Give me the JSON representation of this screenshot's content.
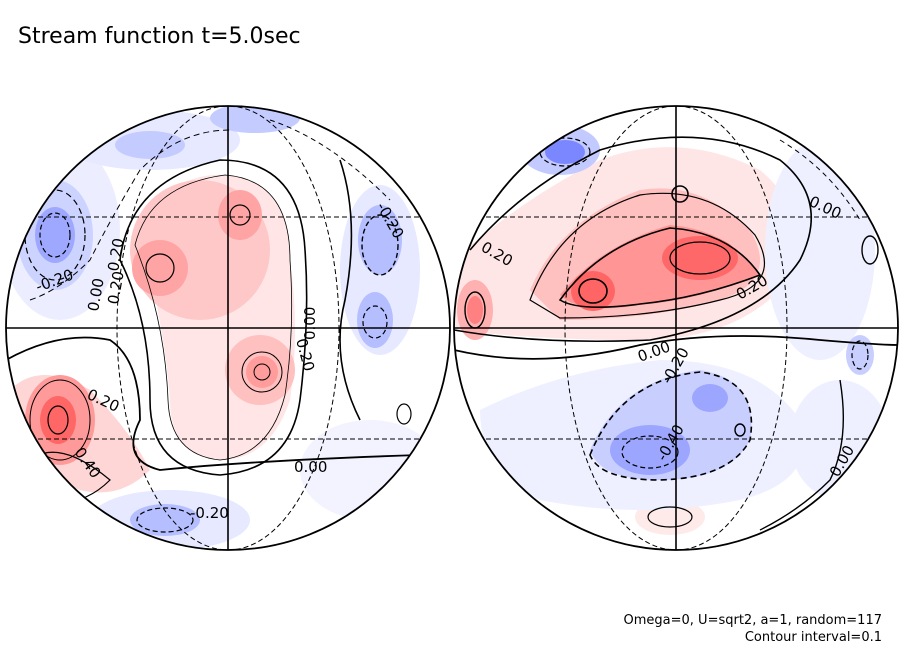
{
  "title": "Stream function t=5.0sec",
  "footer": {
    "params": "Omega=0, U=sqrt2, a=1, random=117",
    "contour_interval": "Contour interval=0.1"
  },
  "colors": {
    "positive": "#ff3b3b",
    "negative": "#3b4cff",
    "line": "#000000"
  },
  "hemispheres": [
    {
      "contour_labels": [
        "0.20",
        "-0.20",
        "0.00",
        "0.20",
        "0.00",
        "0.20",
        "0.40",
        "0.20",
        "0.00",
        "-0.20",
        "-0.20"
      ]
    },
    {
      "contour_labels": [
        "0.00",
        "0.20",
        "0.20",
        "0.00",
        "-0.20",
        "-0.40",
        "0.00"
      ]
    }
  ]
}
